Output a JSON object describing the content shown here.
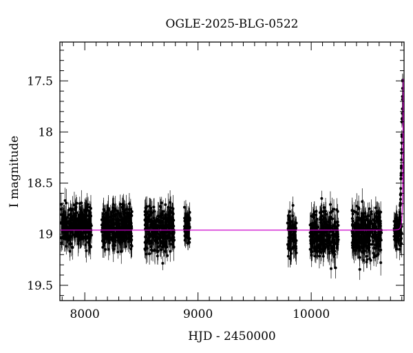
{
  "chart_data": {
    "type": "scatter",
    "title": "OGLE-2025-BLG-0522",
    "xlabel": "HJD - 2450000",
    "ylabel": "I magnitude",
    "xlim": [
      7780,
      10820
    ],
    "ylim": [
      19.65,
      17.12
    ],
    "y_inverted": true,
    "xticks": [
      8000,
      9000,
      10000
    ],
    "xtick_labels": [
      "8000",
      "9000",
      "10000"
    ],
    "yticks": [
      17.5,
      18,
      18.5,
      19,
      19.5
    ],
    "ytick_labels": [
      "17.5",
      "18",
      "18.5",
      "19",
      "19.5"
    ],
    "x_minor_step": 100,
    "y_minor_step": 0.1,
    "grid": false,
    "marker_color": "#000000",
    "model_color": "#cc00cc",
    "series": [
      {
        "kind": "observed-seasons",
        "seasons": [
          {
            "x_start": 7790,
            "x_end": 8060,
            "y_center": 18.92,
            "y_spread": 0.18
          },
          {
            "x_start": 8150,
            "x_end": 8420,
            "y_center": 18.93,
            "y_spread": 0.18
          },
          {
            "x_start": 8530,
            "x_end": 8790,
            "y_center": 18.96,
            "y_spread": 0.2
          },
          {
            "x_start": 8880,
            "x_end": 8930,
            "y_center": 18.92,
            "y_spread": 0.14
          },
          {
            "x_start": 9790,
            "x_end": 9870,
            "y_center": 19.02,
            "y_spread": 0.18
          },
          {
            "x_start": 9990,
            "x_end": 10240,
            "y_center": 19.0,
            "y_spread": 0.2
          },
          {
            "x_start": 10360,
            "x_end": 10620,
            "y_center": 19.0,
            "y_spread": 0.22
          },
          {
            "x_start": 10730,
            "x_end": 10800,
            "y_center": 18.98,
            "y_spread": 0.12
          }
        ],
        "rise": {
          "x_start": 10770,
          "x_end": 10808,
          "y_start": 18.95,
          "y_end": 17.5
        }
      },
      {
        "kind": "model",
        "baseline": 18.96,
        "peak_x": 10812,
        "peak_mag": 17.48,
        "u0": 0.075,
        "tE": 20
      }
    ]
  }
}
